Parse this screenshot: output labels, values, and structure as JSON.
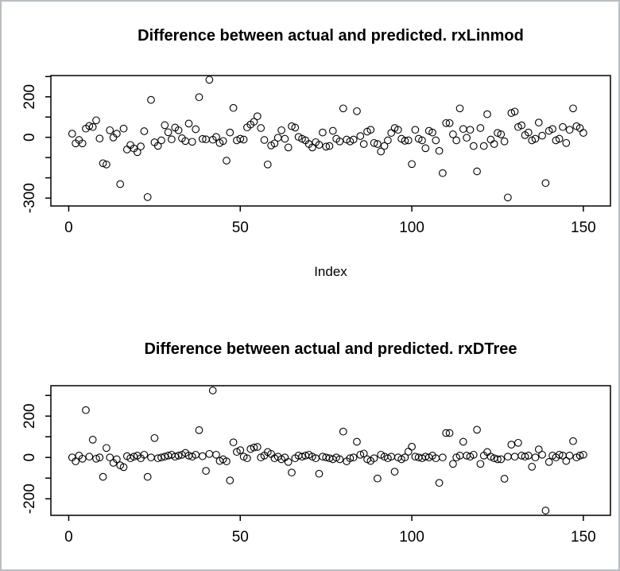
{
  "window": {
    "background": "#ffffff",
    "border_color": "#b9bdc1",
    "foreground": "#000000"
  },
  "chart_data": [
    {
      "type": "scatter",
      "title": "Difference between actual and predicted. rxLinmod",
      "xlabel": "Index",
      "ylabel": "",
      "marker": "open-circle",
      "x_start": 1,
      "xlim": [
        -5.2,
        157.9
      ],
      "ylim": [
        -339,
        305
      ],
      "x_ticks": [
        0,
        50,
        100,
        150
      ],
      "y_ticks": [
        300,
        200,
        100,
        0,
        -100,
        -200,
        -300
      ],
      "y_tick_labels_shown": [
        200,
        0,
        -300
      ],
      "grid": false,
      "values": [
        18,
        -30,
        -13,
        -30,
        43,
        56,
        51,
        84,
        -6,
        -128,
        -134,
        35,
        -1,
        18,
        -231,
        43,
        -60,
        -38,
        -55,
        -73,
        -45,
        30,
        -295,
        185,
        -25,
        -42,
        -15,
        60,
        25,
        -10,
        48,
        35,
        -5,
        -18,
        68,
        -22,
        40,
        198,
        -8,
        -10,
        284,
        -12,
        2,
        -28,
        -18,
        -115,
        24,
        145,
        -15,
        -7,
        -11,
        49,
        63,
        77,
        104,
        46,
        -13,
        -134,
        -40,
        -30,
        -2,
        35,
        -7,
        -50,
        55,
        48,
        2,
        -7,
        -15,
        -33,
        -50,
        -24,
        -37,
        24,
        -46,
        -43,
        32,
        -7,
        -20,
        143,
        -11,
        -20,
        -11,
        129,
        6,
        -33,
        28,
        37,
        -28,
        -33,
        -70,
        -43,
        -15,
        22,
        46,
        37,
        -7,
        -17,
        -15,
        -132,
        37,
        -7,
        -15,
        -54,
        32,
        24,
        -15,
        -67,
        -177,
        70,
        70,
        15,
        -15,
        143,
        41,
        -2,
        37,
        -43,
        -168,
        46,
        -43,
        114,
        -11,
        -33,
        22,
        15,
        -20,
        -297,
        120,
        127,
        51,
        59,
        11,
        24,
        -15,
        -7,
        73,
        8,
        -226,
        32,
        41,
        -15,
        -7,
        51,
        -28,
        37,
        143,
        55,
        46,
        22
      ]
    },
    {
      "type": "scatter",
      "title": "Difference between actual and predicted. rxDTree",
      "xlabel": "",
      "ylabel": "",
      "marker": "open-circle",
      "x_start": 1,
      "xlim": [
        -5.2,
        157.9
      ],
      "ylim": [
        -280,
        347
      ],
      "x_ticks": [
        0,
        50,
        100,
        150
      ],
      "y_ticks": [
        300,
        200,
        100,
        0,
        -100,
        -200
      ],
      "y_tick_labels_shown": [
        200,
        0,
        -200
      ],
      "grid": false,
      "values": [
        0,
        -19,
        9,
        -6,
        229,
        4,
        86,
        -6,
        0,
        -94,
        46,
        0,
        -26,
        -9,
        -38,
        -47,
        6,
        -4,
        4,
        9,
        -4,
        13,
        -94,
        0,
        94,
        -4,
        0,
        4,
        9,
        13,
        4,
        9,
        13,
        22,
        9,
        4,
        13,
        132,
        6,
        -65,
        17,
        324,
        13,
        -17,
        -9,
        -19,
        -111,
        73,
        27,
        35,
        4,
        -4,
        41,
        48,
        51,
        0,
        9,
        26,
        17,
        -4,
        4,
        -9,
        0,
        -22,
        -73,
        -4,
        9,
        4,
        9,
        13,
        4,
        -4,
        -79,
        4,
        0,
        -4,
        -9,
        0,
        -9,
        125,
        -19,
        -4,
        0,
        76,
        13,
        19,
        -9,
        -17,
        -4,
        -102,
        13,
        4,
        -4,
        4,
        -69,
        0,
        -9,
        0,
        28,
        52,
        4,
        0,
        -4,
        4,
        0,
        9,
        -4,
        -123,
        0,
        118,
        118,
        -31,
        0,
        9,
        76,
        9,
        4,
        13,
        134,
        -31,
        9,
        26,
        4,
        -4,
        -9,
        -9,
        -103,
        4,
        62,
        4,
        71,
        9,
        4,
        9,
        -45,
        0,
        39,
        13,
        -257,
        -22,
        9,
        0,
        13,
        9,
        -17,
        9,
        79,
        0,
        9,
        13
      ]
    }
  ]
}
